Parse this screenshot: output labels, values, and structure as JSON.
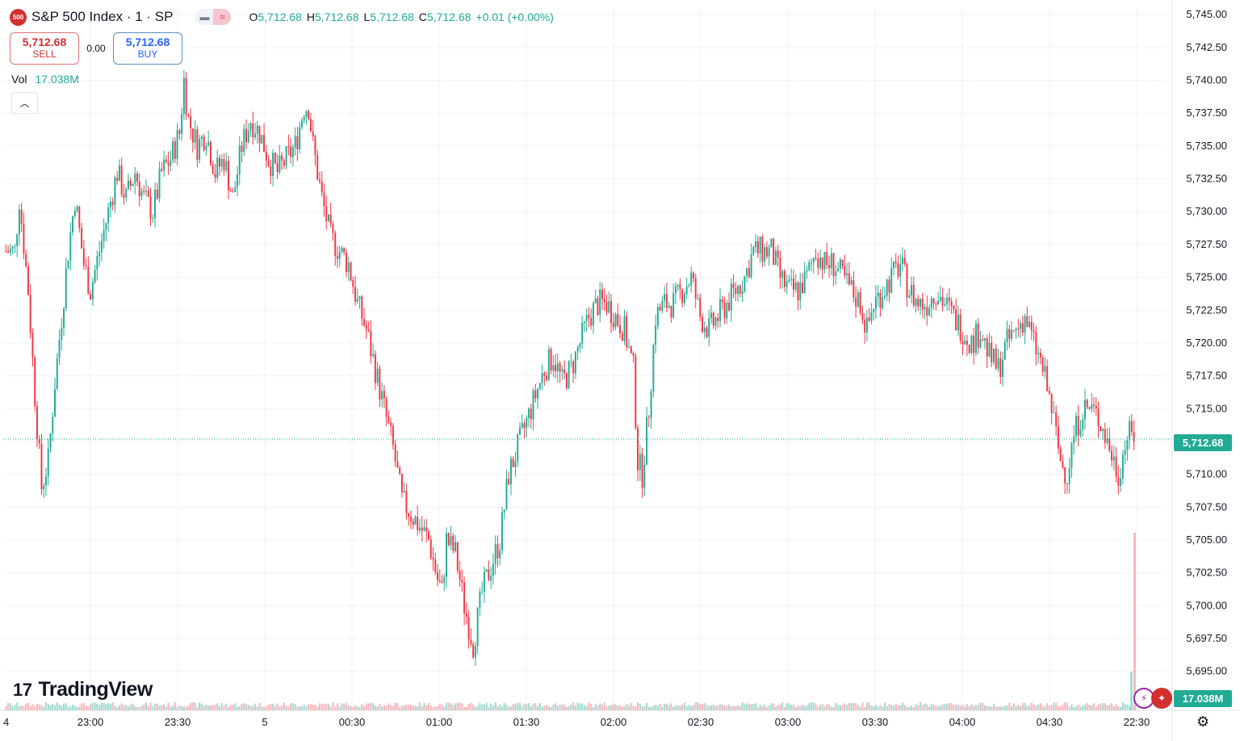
{
  "header": {
    "symbol_logo": "500",
    "symbol": "S&P 500 Index · 1 · SP",
    "ohlc": {
      "o_label": "O",
      "o": "5,712.68",
      "h_label": "H",
      "h": "5,712.68",
      "l_label": "L",
      "l": "5,712.68",
      "c_label": "C",
      "c": "5,712.68",
      "change": "+0.01 (+0.00%)"
    }
  },
  "trade": {
    "sell_price": "5,712.68",
    "sell_label": "SELL",
    "spread": "0.00",
    "buy_price": "5,712.68",
    "buy_label": "BUY"
  },
  "volume": {
    "label": "Vol",
    "value": "17.038M"
  },
  "collapse_icon": "chevron-up-icon",
  "logo": {
    "mark": "17",
    "text": "TradingView"
  },
  "price_label": "5,712.68",
  "volume_label": "17.038M",
  "colors": {
    "up": "#22ab94",
    "down": "#f23645",
    "price_label": "#22ab94"
  },
  "chart_data": {
    "type": "candlestick",
    "y_axis": {
      "ticks": [
        "5,745.00",
        "5,742.50",
        "5,740.00",
        "5,737.50",
        "5,735.00",
        "5,732.50",
        "5,730.00",
        "5,727.50",
        "5,725.00",
        "5,722.50",
        "5,720.00",
        "5,717.50",
        "5,715.00",
        "5,712.50",
        "5,710.00",
        "5,707.50",
        "5,705.00",
        "5,702.50",
        "5,700.00",
        "5,697.50",
        "5,695.00"
      ],
      "tick_values": [
        5745,
        5742.5,
        5740,
        5737.5,
        5735,
        5732.5,
        5730,
        5727.5,
        5725,
        5722.5,
        5720,
        5717.5,
        5715,
        5712.5,
        5710,
        5707.5,
        5705,
        5702.5,
        5700,
        5697.5,
        5695
      ],
      "range": [
        5694.0,
        5745.5
      ]
    },
    "x_axis": {
      "ticks": [
        "4",
        "23:00",
        "23:30",
        "5",
        "00:30",
        "01:00",
        "01:30",
        "02:00",
        "02:30",
        "03:00",
        "03:30",
        "04:00",
        "04:30",
        "22:30"
      ]
    },
    "current_price": 5712.68,
    "price_path": [
      [
        0,
        5727
      ],
      [
        4,
        5727
      ],
      [
        6,
        5731
      ],
      [
        10,
        5724
      ],
      [
        13,
        5716
      ],
      [
        16,
        5709
      ],
      [
        19,
        5711
      ],
      [
        22,
        5717
      ],
      [
        25,
        5722
      ],
      [
        28,
        5727
      ],
      [
        31,
        5731
      ],
      [
        35,
        5726
      ],
      [
        38,
        5724
      ],
      [
        42,
        5727
      ],
      [
        46,
        5730
      ],
      [
        50,
        5733
      ],
      [
        54,
        5731
      ],
      [
        58,
        5733
      ],
      [
        62,
        5731
      ],
      [
        66,
        5730
      ],
      [
        70,
        5733
      ],
      [
        74,
        5734
      ],
      [
        78,
        5736
      ],
      [
        80,
        5740
      ],
      [
        82,
        5737
      ],
      [
        86,
        5735
      ],
      [
        90,
        5736
      ],
      [
        94,
        5733
      ],
      [
        98,
        5734
      ],
      [
        102,
        5731
      ],
      [
        106,
        5735
      ],
      [
        110,
        5737
      ],
      [
        114,
        5736
      ],
      [
        118,
        5734
      ],
      [
        122,
        5733
      ],
      [
        126,
        5734
      ],
      [
        130,
        5735
      ],
      [
        134,
        5738
      ],
      [
        136,
        5738
      ],
      [
        138,
        5735
      ],
      [
        142,
        5731
      ],
      [
        146,
        5728
      ],
      [
        150,
        5727
      ],
      [
        154,
        5726
      ],
      [
        158,
        5723
      ],
      [
        162,
        5721
      ],
      [
        166,
        5718
      ],
      [
        170,
        5715
      ],
      [
        174,
        5712
      ],
      [
        178,
        5708
      ],
      [
        182,
        5707
      ],
      [
        186,
        5706
      ],
      [
        190,
        5705
      ],
      [
        194,
        5702
      ],
      [
        196,
        5701
      ],
      [
        198,
        5705
      ],
      [
        202,
        5704
      ],
      [
        206,
        5700
      ],
      [
        210,
        5697
      ],
      [
        214,
        5701
      ],
      [
        218,
        5703
      ],
      [
        222,
        5705
      ],
      [
        226,
        5710
      ],
      [
        230,
        5712
      ],
      [
        234,
        5714
      ],
      [
        238,
        5716
      ],
      [
        242,
        5718
      ],
      [
        246,
        5719
      ],
      [
        250,
        5717
      ],
      [
        254,
        5718
      ],
      [
        258,
        5720
      ],
      [
        262,
        5722
      ],
      [
        266,
        5723
      ],
      [
        270,
        5723
      ],
      [
        274,
        5722
      ],
      [
        278,
        5721
      ],
      [
        282,
        5718
      ],
      [
        284,
        5711
      ],
      [
        286,
        5710
      ],
      [
        289,
        5715
      ],
      [
        292,
        5722
      ],
      [
        296,
        5723
      ],
      [
        300,
        5723
      ],
      [
        304,
        5724
      ],
      [
        308,
        5725
      ],
      [
        312,
        5722
      ],
      [
        316,
        5721
      ],
      [
        320,
        5722
      ],
      [
        324,
        5723
      ],
      [
        328,
        5724
      ],
      [
        332,
        5725
      ],
      [
        336,
        5727
      ],
      [
        340,
        5727
      ],
      [
        344,
        5727
      ],
      [
        348,
        5725
      ],
      [
        352,
        5724
      ],
      [
        356,
        5724
      ],
      [
        360,
        5725
      ],
      [
        364,
        5727
      ],
      [
        368,
        5726
      ],
      [
        372,
        5726
      ],
      [
        376,
        5725
      ],
      [
        380,
        5724
      ],
      [
        384,
        5723
      ],
      [
        387,
        5721
      ],
      [
        390,
        5723
      ],
      [
        394,
        5724
      ],
      [
        398,
        5725
      ],
      [
        402,
        5726
      ],
      [
        406,
        5724
      ],
      [
        410,
        5723
      ],
      [
        414,
        5723
      ],
      [
        418,
        5724
      ],
      [
        422,
        5723
      ],
      [
        426,
        5722
      ],
      [
        430,
        5721
      ],
      [
        434,
        5720
      ],
      [
        438,
        5721
      ],
      [
        442,
        5719
      ],
      [
        446,
        5718
      ],
      [
        450,
        5720
      ],
      [
        454,
        5721
      ],
      [
        458,
        5722
      ],
      [
        462,
        5720
      ],
      [
        466,
        5718
      ],
      [
        470,
        5715
      ],
      [
        474,
        5711
      ],
      [
        477,
        5710
      ],
      [
        480,
        5713
      ],
      [
        484,
        5715
      ],
      [
        488,
        5715
      ],
      [
        492,
        5714
      ],
      [
        496,
        5712
      ],
      [
        500,
        5710
      ],
      [
        504,
        5713
      ],
      [
        507,
        5713
      ]
    ],
    "volume_spike_last": "17.038M"
  }
}
